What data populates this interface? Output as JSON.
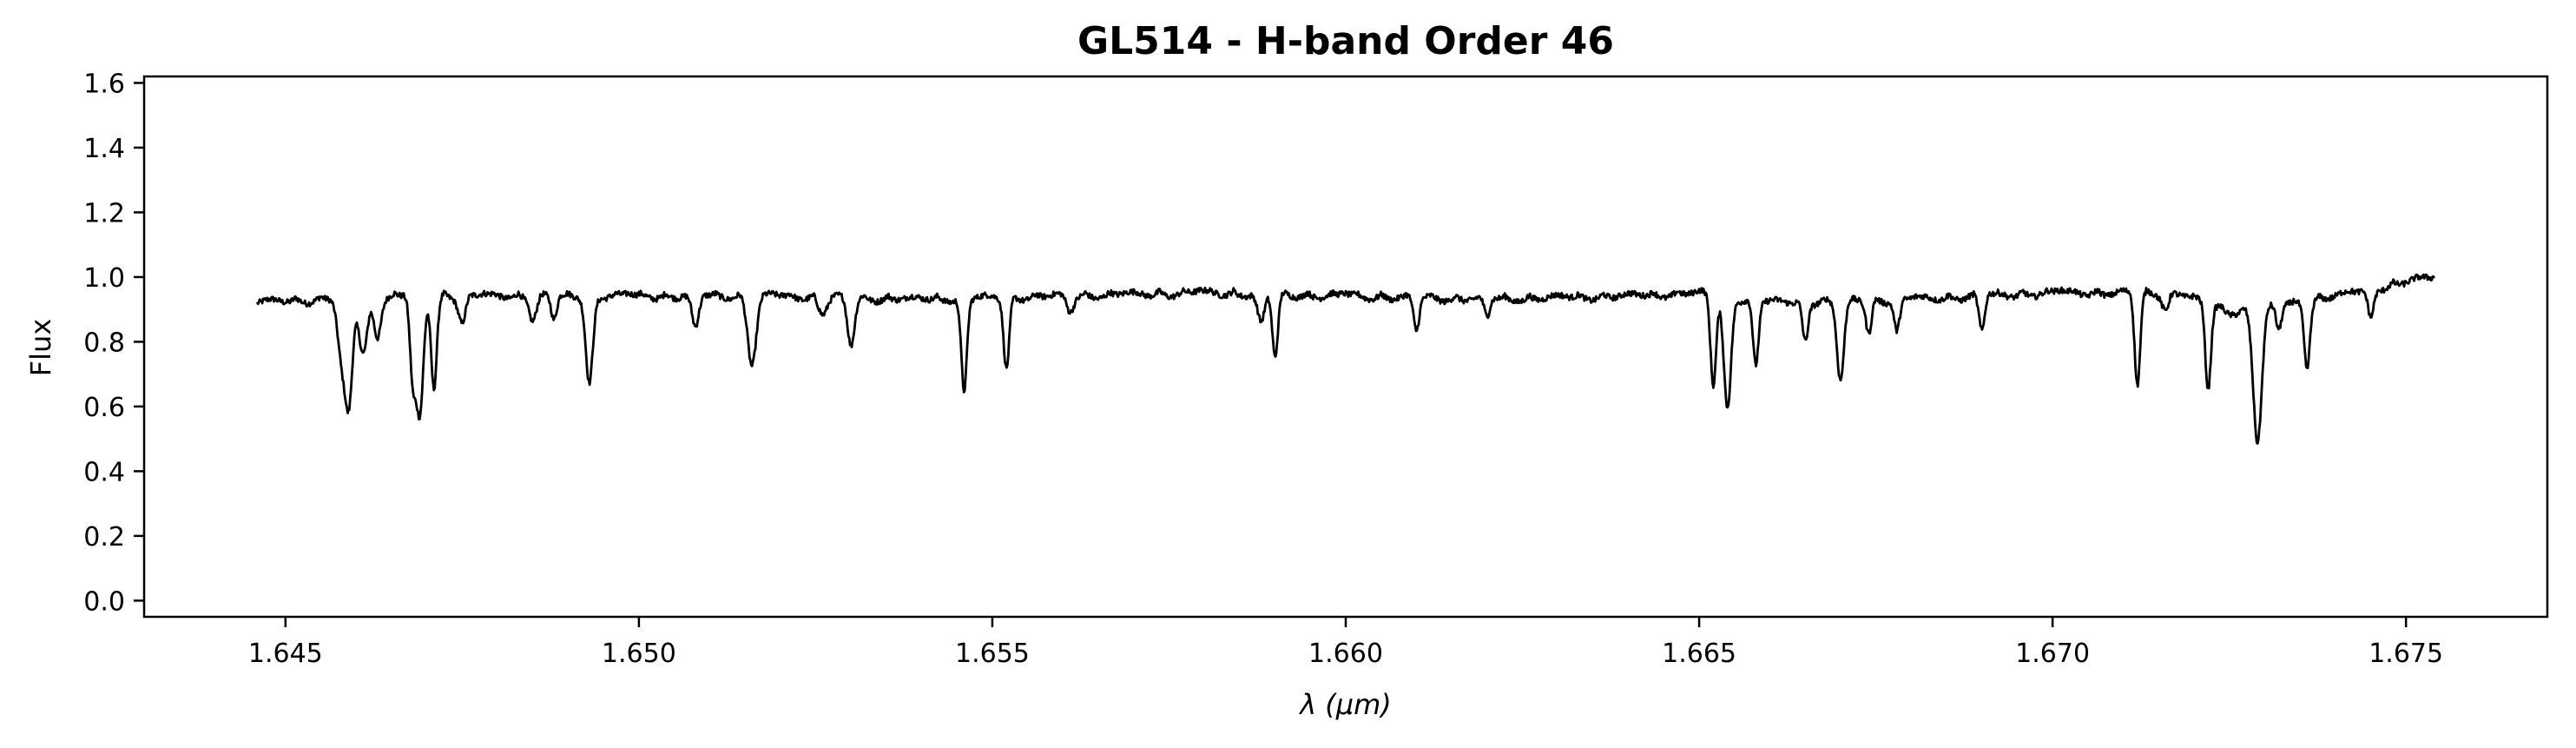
{
  "chart_data": {
    "type": "line",
    "title": "GL514 - H-band Order 46",
    "xlabel_symbol": "λ",
    "xlabel_unit": "(μm)",
    "ylabel": "Flux",
    "xlim": [
      1.643,
      1.677
    ],
    "ylim": [
      -0.05,
      1.62
    ],
    "x_ticks": [
      1.645,
      1.65,
      1.655,
      1.66,
      1.665,
      1.67,
      1.675
    ],
    "x_tick_labels": [
      "1.645",
      "1.650",
      "1.655",
      "1.660",
      "1.665",
      "1.670",
      "1.675"
    ],
    "y_ticks": [
      0.0,
      0.2,
      0.4,
      0.6,
      0.8,
      1.0,
      1.2,
      1.4,
      1.6
    ],
    "y_tick_labels": [
      "0.0",
      "0.2",
      "0.4",
      "0.6",
      "0.8",
      "1.0",
      "1.2",
      "1.4",
      "1.6"
    ],
    "grid": false,
    "line_color": "#000000",
    "series": [
      {
        "x_range": [
          1.6446,
          1.6754
        ],
        "continuum": [
          [
            1.6446,
            0.93
          ],
          [
            1.6455,
            0.94
          ],
          [
            1.6465,
            0.95
          ],
          [
            1.648,
            0.95
          ],
          [
            1.65,
            0.95
          ],
          [
            1.652,
            0.95
          ],
          [
            1.654,
            0.94
          ],
          [
            1.656,
            0.95
          ],
          [
            1.658,
            0.96
          ],
          [
            1.66,
            0.95
          ],
          [
            1.662,
            0.94
          ],
          [
            1.664,
            0.95
          ],
          [
            1.665,
            0.96
          ],
          [
            1.666,
            0.93
          ],
          [
            1.668,
            0.94
          ],
          [
            1.67,
            0.96
          ],
          [
            1.6718,
            0.96
          ],
          [
            1.6725,
            0.9
          ],
          [
            1.6735,
            0.93
          ],
          [
            1.6745,
            0.97
          ],
          [
            1.6754,
            1.01
          ]
        ],
        "absorption_lines": [
          [
            1.6458,
            0.2,
            6e-05
          ],
          [
            1.6459,
            0.3,
            5e-05
          ],
          [
            1.6461,
            0.17,
            6e-05
          ],
          [
            1.6463,
            0.12,
            5e-05
          ],
          [
            1.6468,
            0.25,
            4e-05
          ],
          [
            1.6469,
            0.37,
            5e-05
          ],
          [
            1.6471,
            0.28,
            4e-05
          ],
          [
            1.6475,
            0.08,
            5e-05
          ],
          [
            1.6485,
            0.07,
            5e-05
          ],
          [
            1.6488,
            0.08,
            4e-05
          ],
          [
            1.6493,
            0.27,
            5e-05
          ],
          [
            1.6508,
            0.1,
            5e-05
          ],
          [
            1.6516,
            0.21,
            6e-05
          ],
          [
            1.6526,
            0.05,
            6e-05
          ],
          [
            1.653,
            0.15,
            5e-05
          ],
          [
            1.6546,
            0.29,
            4e-05
          ],
          [
            1.6552,
            0.22,
            4e-05
          ],
          [
            1.6561,
            0.05,
            5e-05
          ],
          [
            1.6588,
            0.09,
            5e-05
          ],
          [
            1.659,
            0.2,
            4e-05
          ],
          [
            1.661,
            0.11,
            4e-05
          ],
          [
            1.662,
            0.06,
            4e-05
          ],
          [
            1.6652,
            0.28,
            4e-05
          ],
          [
            1.6654,
            0.35,
            5e-05
          ],
          [
            1.6658,
            0.2,
            4e-05
          ],
          [
            1.6665,
            0.12,
            4e-05
          ],
          [
            1.667,
            0.25,
            5e-05
          ],
          [
            1.6674,
            0.1,
            4e-05
          ],
          [
            1.6678,
            0.1,
            4e-05
          ],
          [
            1.669,
            0.11,
            4e-05
          ],
          [
            1.6712,
            0.29,
            4e-05
          ],
          [
            1.6716,
            0.05,
            5e-05
          ],
          [
            1.6722,
            0.27,
            4e-05
          ],
          [
            1.6729,
            0.41,
            6e-05
          ],
          [
            1.6732,
            0.08,
            4e-05
          ],
          [
            1.6736,
            0.2,
            4e-05
          ],
          [
            1.6745,
            0.09,
            4e-05
          ]
        ]
      }
    ]
  }
}
